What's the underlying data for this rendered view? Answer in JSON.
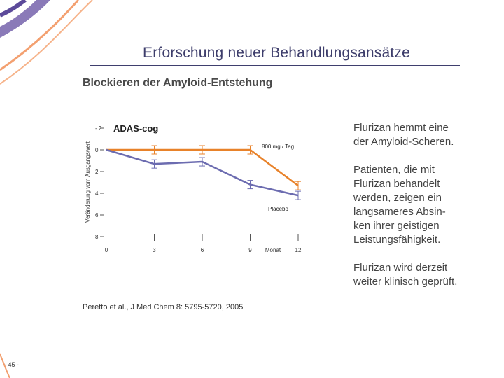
{
  "slide": {
    "title": "Erforschung neuer Behandlungsansätze",
    "subtitle": "Blockieren der Amyloid-Entstehung",
    "bullets": [
      "Flurizan hemmt eine\nder Amyloid-Scheren.",
      "Patienten, die mit\nFlurizan behandelt\nwerden, zeigen ein\nlangsameres Absin-\nken ihrer geistigen\nLeistungsfähigkeit.",
      "Flurizan wird derzeit\nweiter klinisch geprüft."
    ],
    "citation": "Peretto et al., J Med Chem 8: 5795-5720, 2005",
    "page_number": "- 45 -",
    "colors": {
      "accent_purple": "#6b6bb0",
      "deco_orange": "#f3a070",
      "title_color": "#3d3d6b",
      "series_treatment": "#e8822a",
      "series_placebo": "#6c6cb0"
    }
  },
  "chart_data": {
    "type": "line",
    "title": "ADAS-cog",
    "ylabel": "Veränderung vom Ausgangswert",
    "xlabel": "Monat",
    "x_ticks": [
      0,
      3,
      6,
      9,
      12
    ],
    "y_ticks": [
      -2,
      0,
      2,
      4,
      6,
      8
    ],
    "y_tick_labels": [
      "- 2",
      "0",
      "2",
      "4",
      "6",
      "8"
    ],
    "ylim": [
      -2,
      8
    ],
    "xlim": [
      0,
      12
    ],
    "y_inverted": true,
    "grid": false,
    "legend": "inline labels",
    "series": [
      {
        "name": "800 mg / Tag",
        "color": "#e8822a",
        "x": [
          0,
          3,
          6,
          9,
          12
        ],
        "y": [
          0,
          0,
          0,
          0,
          3.3
        ]
      },
      {
        "name": "Placebo",
        "color": "#6c6cb0",
        "x": [
          0,
          3,
          6,
          9,
          12
        ],
        "y": [
          0,
          1.3,
          1.1,
          3.2,
          4.2
        ]
      }
    ]
  }
}
